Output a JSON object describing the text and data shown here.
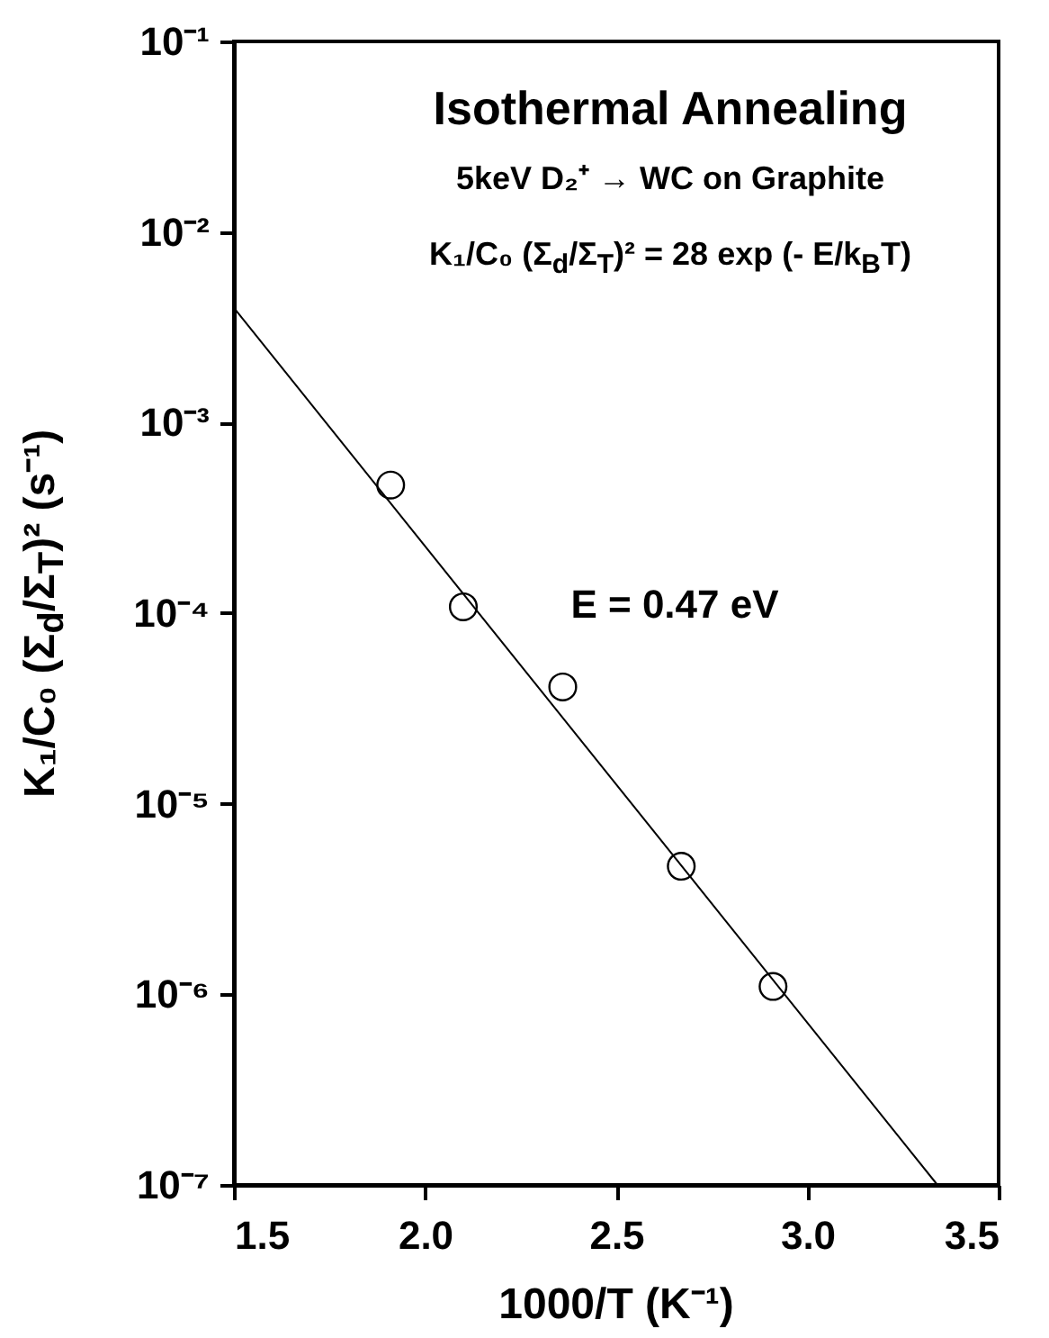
{
  "chart_data": {
    "type": "scatter",
    "title": "Isothermal Annealing",
    "subtitle": "5keV D₂⁺ → WC on Graphite",
    "xlabel": "1000/T (K⁻¹)",
    "ylabel": "K₁/C₀ (Σ$_{d}$/Σ$_{T}$)² (s⁻¹)",
    "annotations": [
      "K₁/C₀ (Σ$_{d}$/Σ$_{T}$)² = 28 exp (- E/k$_{B}$T)",
      "E = 0.47 eV"
    ],
    "series": [
      {
        "color": "#000000",
        "marker": "circle",
        "x": [
          1.91,
          2.1,
          2.36,
          2.67,
          2.91
        ],
        "values": [
          0.00047,
          0.000108,
          4.1e-05,
          4.7e-06,
          1.1e-06
        ]
      },
      {
        "type": "line",
        "color": "#000000",
        "marker": "none",
        "x": [
          1.5,
          3.34
        ],
        "values": [
          0.004,
          1e-07
        ]
      }
    ],
    "log": "y",
    "grid": false,
    "xlim": [
      1.5,
      3.5
    ],
    "xticks": [
      1.5,
      {
        "value": 2,
        "label": "2.0"
      },
      2.5,
      {
        "value": 3,
        "label": "3.0"
      },
      3.5
    ],
    "ylim": [
      1e-07,
      0.1
    ],
    "yticks": [
      {
        "value": 1e-07,
        "label": "10⁻⁷"
      },
      {
        "value": 1e-06,
        "label": "10⁻⁶"
      },
      {
        "value": 1e-05,
        "label": "10⁻⁵"
      },
      {
        "value": 0.0001,
        "label": "10⁻⁴"
      },
      {
        "value": 0.001,
        "label": "10⁻³"
      },
      {
        "value": 0.01,
        "label": "10⁻²"
      },
      {
        "value": 0.1,
        "label": "10⁻¹"
      }
    ]
  }
}
